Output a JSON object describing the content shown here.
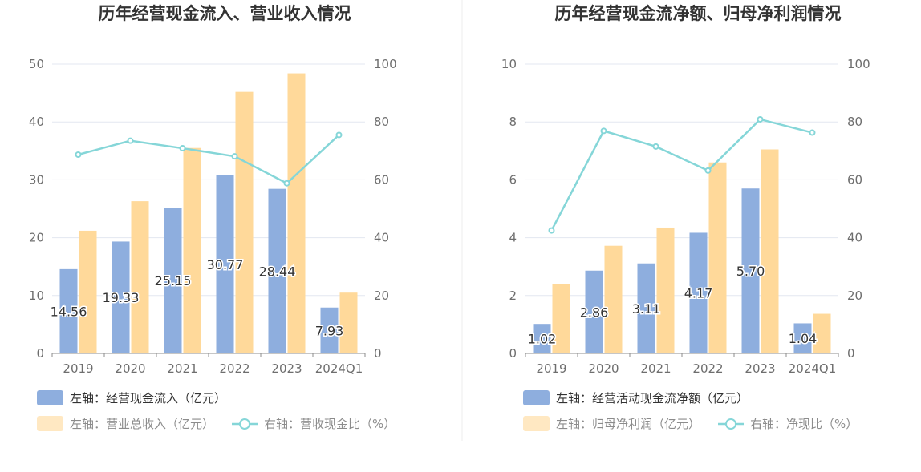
{
  "colors": {
    "bar_primary": "#8eaede",
    "bar_secondary": "#ffd99a",
    "line": "#85d6d8",
    "grid": "#e3e7f0",
    "axis": "#8c8c8c",
    "divider": "#eeeeee"
  },
  "chart_data": [
    {
      "type": "bar",
      "title": "历年经营现金流入、营业收入情况",
      "categories": [
        "2019",
        "2020",
        "2021",
        "2022",
        "2023",
        "2024Q1"
      ],
      "series": [
        {
          "name": "左轴：经营现金流入（亿元）",
          "axis": "left",
          "type": "bar",
          "values": [
            14.56,
            19.33,
            25.15,
            30.77,
            28.44,
            7.93
          ],
          "labels": [
            "14.56",
            "19.33",
            "25.15",
            "30.77",
            "28.44",
            "7.93"
          ]
        },
        {
          "name": "左轴：营业总收入（亿元）",
          "axis": "left",
          "type": "bar",
          "values": [
            21.2,
            26.3,
            35.5,
            45.2,
            48.4,
            10.5
          ]
        },
        {
          "name": "右轴：营收现金比（%）",
          "axis": "right",
          "type": "line",
          "values": [
            68.7,
            73.5,
            70.9,
            68.1,
            58.8,
            75.5
          ]
        }
      ],
      "left_axis": {
        "min": 0,
        "max": 50,
        "ticks": [
          "0",
          "10",
          "20",
          "30",
          "40",
          "50"
        ]
      },
      "right_axis": {
        "min": 0,
        "max": 100,
        "ticks": [
          "0",
          "20",
          "40",
          "60",
          "80",
          "100"
        ]
      },
      "legend": [
        "左轴：经营现金流入（亿元）",
        "左轴：营业总收入（亿元）",
        "右轴：营收现金比（%）"
      ]
    },
    {
      "type": "bar",
      "title": "历年经营现金流净额、归母净利润情况",
      "categories": [
        "2019",
        "2020",
        "2021",
        "2022",
        "2023",
        "2024Q1"
      ],
      "series": [
        {
          "name": "左轴：经营活动现金流净额（亿元）",
          "axis": "left",
          "type": "bar",
          "values": [
            1.02,
            2.86,
            3.11,
            4.17,
            5.7,
            1.04
          ],
          "labels": [
            "1.02",
            "2.86",
            "3.11",
            "4.17",
            "5.70",
            "1.04"
          ]
        },
        {
          "name": "左轴：归母净利润（亿元）",
          "axis": "left",
          "type": "bar",
          "values": [
            2.4,
            3.72,
            4.35,
            6.6,
            7.05,
            1.37
          ]
        },
        {
          "name": "右轴：净现比（%）",
          "axis": "right",
          "type": "line",
          "values": [
            42.5,
            76.9,
            71.5,
            63.2,
            80.9,
            76.3
          ]
        }
      ],
      "left_axis": {
        "min": 0,
        "max": 10,
        "ticks": [
          "0",
          "2",
          "4",
          "6",
          "8",
          "10"
        ]
      },
      "right_axis": {
        "min": 0,
        "max": 100,
        "ticks": [
          "0",
          "20",
          "40",
          "60",
          "80",
          "100"
        ]
      },
      "legend": [
        "左轴：经营活动现金流净额（亿元）",
        "左轴：归母净利润（亿元）",
        "右轴：净现比（%）"
      ]
    }
  ]
}
